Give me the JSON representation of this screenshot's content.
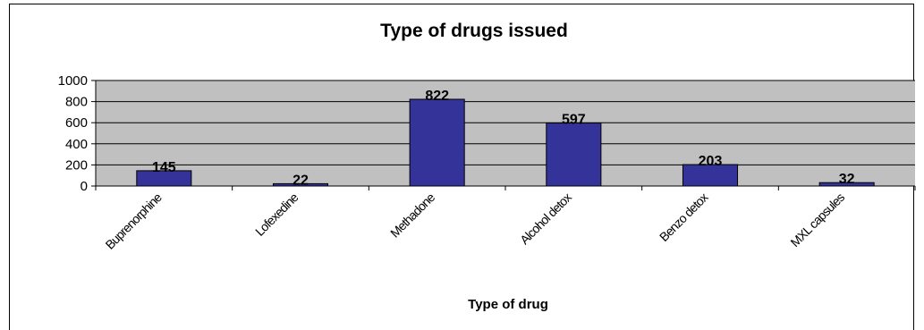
{
  "chart_data": {
    "type": "bar",
    "title": "Type of drugs issued",
    "xlabel": "Type of drug",
    "ylabel": "",
    "categories": [
      "Buprenorphine",
      "Lofexedine",
      "Methadone",
      "Alcohol detox",
      "Benzo detox",
      "MXL capsules"
    ],
    "values": [
      145,
      22,
      822,
      597,
      203,
      32
    ],
    "ylim": [
      0,
      1000
    ],
    "yticks": [
      0,
      200,
      400,
      600,
      800,
      1000
    ],
    "grid": true,
    "legend": "none",
    "colors": {
      "bar": "#333399",
      "plot_bg": "#c0c0c0",
      "grid": "#000000"
    }
  }
}
